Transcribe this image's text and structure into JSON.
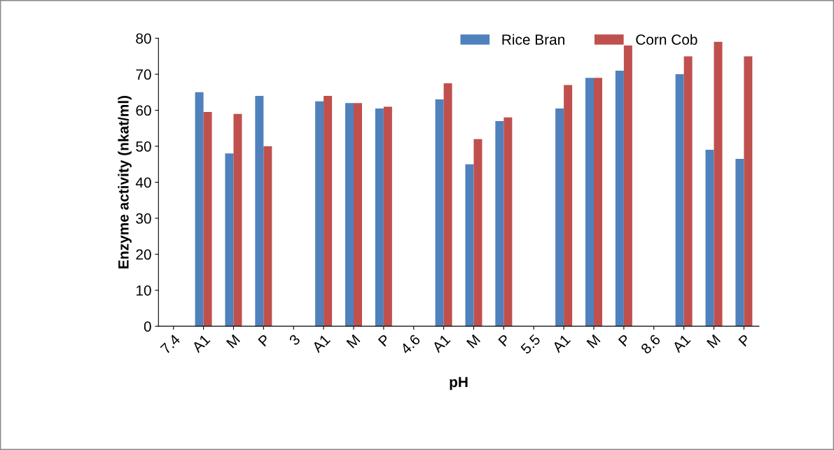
{
  "chart_data": {
    "type": "bar",
    "xlabel": "pH",
    "ylabel": "Enzyme activity (nkat/ml)",
    "categories": [
      "7.4",
      "A1",
      "M",
      "P",
      "3",
      "A1",
      "M",
      "P",
      "4.6",
      "A1",
      "M",
      "P",
      "5.5",
      "A1",
      "M",
      "P",
      "8.6",
      "A1",
      "M",
      "P"
    ],
    "series": [
      {
        "name": "Rice Bran",
        "color": "#4f81bd",
        "values": [
          null,
          65,
          48,
          64,
          null,
          62.5,
          62,
          60.5,
          null,
          63,
          45,
          57,
          null,
          60.5,
          69,
          71,
          null,
          70,
          49,
          46.5
        ]
      },
      {
        "name": "Corn Cob",
        "color": "#c0504d",
        "values": [
          null,
          59.5,
          59,
          50,
          null,
          64,
          62,
          61,
          null,
          67.5,
          52,
          58,
          null,
          67,
          69,
          78,
          null,
          75,
          79,
          75
        ]
      }
    ],
    "ylim": [
      0,
      80
    ],
    "yticks": [
      0,
      10,
      20,
      30,
      40,
      50,
      60,
      70,
      80
    ],
    "grid": false,
    "legend": "top right"
  }
}
